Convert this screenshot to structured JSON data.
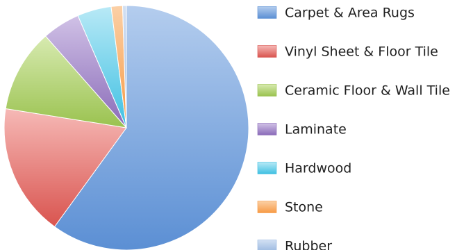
{
  "chart_data": {
    "type": "pie",
    "title": "",
    "legend_position": "right",
    "slices": [
      {
        "label": "Carpet & Area Rugs",
        "value": 60.0,
        "color": "#5b8fd4",
        "color_light": "#b4cdee"
      },
      {
        "label": "Vinyl Sheet & Floor Tile",
        "value": 17.5,
        "color": "#d9544f",
        "color_light": "#f6b9b6"
      },
      {
        "label": "Ceramic Floor & Wall Tile",
        "value": 11.0,
        "color": "#9ac24f",
        "color_light": "#d7eab0"
      },
      {
        "label": "Laminate",
        "value": 5.0,
        "color": "#8a6bb8",
        "color_light": "#d0c1e6"
      },
      {
        "label": "Hardwood",
        "value": 4.5,
        "color": "#3fc0e2",
        "color_light": "#b8e9f6"
      },
      {
        "label": "Stone",
        "value": 1.5,
        "color": "#f79a45",
        "color_light": "#fbd0a6"
      },
      {
        "label": "Rubber",
        "value": 0.5,
        "color": "#9ab8e0",
        "color_light": "#d2e0f3"
      }
    ]
  }
}
